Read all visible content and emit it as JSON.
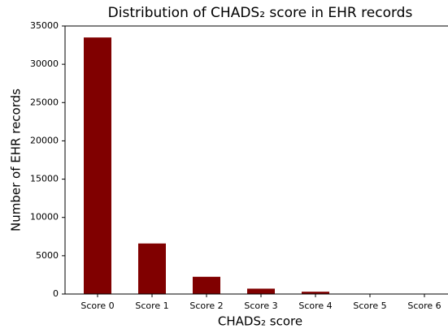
{
  "chart_data": {
    "type": "bar",
    "title": "Distribution of CHADS₂ score in EHR records",
    "x_label": "CHADS₂ score",
    "y_label": "Number of EHR records",
    "categories": [
      "Score 0",
      "Score 1",
      "Score 2",
      "Score 3",
      "Score 4",
      "Score 5",
      "Score 6"
    ],
    "values": [
      33500,
      6600,
      2250,
      700,
      300,
      50,
      30
    ],
    "color": "#800000",
    "ylim": [
      0,
      35000
    ],
    "yticks": [
      0,
      5000,
      10000,
      15000,
      20000,
      25000,
      30000,
      35000
    ],
    "grid": false
  }
}
